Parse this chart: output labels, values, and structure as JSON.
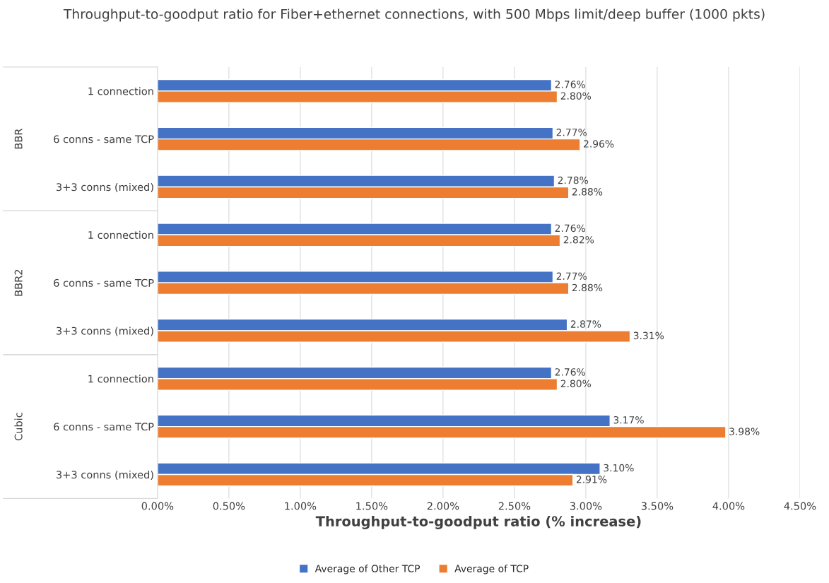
{
  "chart_data": {
    "type": "bar",
    "orientation": "horizontal",
    "title": "Throughput-to-goodput ratio for Fiber+ethernet connections, with 500 Mbps limit/deep buffer (1000 pkts)",
    "xlabel": "Throughput-to-goodput ratio (% increase)",
    "categories": [
      "1 connection",
      "6 conns - same TCP",
      "3+3 conns (mixed)",
      "1 connection",
      "6 conns - same TCP",
      "3+3 conns (mixed)",
      "1 connection",
      "6 conns - same TCP",
      "3+3 conns (mixed)"
    ],
    "annotations": [
      "BBR",
      "BBR2",
      "Cubic"
    ],
    "series": [
      {
        "name": "Average of Other TCP",
        "color": "#4472c4",
        "values": [
          2.76,
          2.77,
          2.78,
          2.76,
          2.77,
          2.87,
          2.76,
          3.17,
          3.1
        ],
        "value_labels": [
          "2.76%",
          "2.77%",
          "2.78%",
          "2.76%",
          "2.77%",
          "2.87%",
          "2.76%",
          "3.17%",
          "3.10%"
        ]
      },
      {
        "name": "Average of TCP",
        "color": "#ed7d31",
        "values": [
          2.8,
          2.96,
          2.88,
          2.82,
          2.88,
          3.31,
          2.8,
          3.98,
          2.91
        ],
        "value_labels": [
          "2.80%",
          "2.96%",
          "2.88%",
          "2.82%",
          "2.88%",
          "3.31%",
          "2.80%",
          "3.98%",
          "2.91%"
        ]
      }
    ],
    "xlim": [
      0,
      4.5
    ],
    "xticks": [
      {
        "value": 0,
        "label": "0.00%"
      },
      {
        "value": 0.5,
        "label": "0.50%"
      },
      {
        "value": 1,
        "label": "1.00%"
      },
      {
        "value": 1.5,
        "label": "1.50%"
      },
      {
        "value": 2,
        "label": "2.00%"
      },
      {
        "value": 2.5,
        "label": "2.50%"
      },
      {
        "value": 3,
        "label": "3.00%"
      },
      {
        "value": 3.5,
        "label": "3.50%"
      },
      {
        "value": 4,
        "label": "4.00%"
      },
      {
        "value": 4.5,
        "label": "4.50%"
      }
    ],
    "grid": "x",
    "legend": "bottom"
  }
}
